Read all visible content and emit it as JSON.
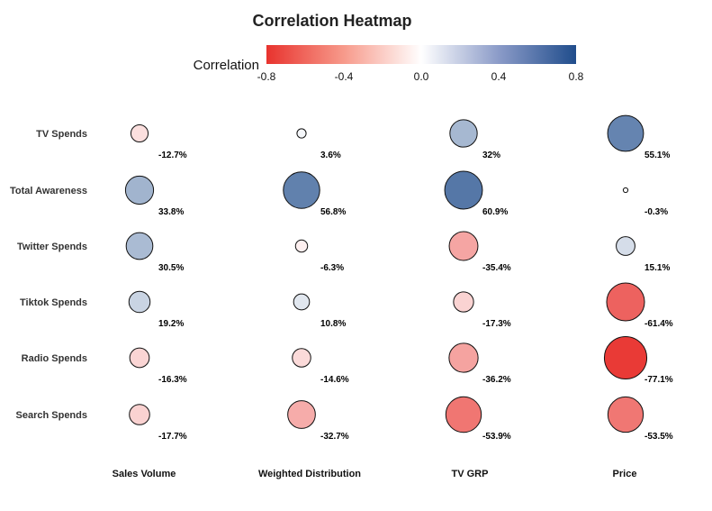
{
  "chart_data": {
    "type": "heatmap",
    "title": "Correlation Heatmap",
    "colorbar": {
      "label": "Correlation",
      "range": [
        -0.8,
        0.8
      ],
      "ticks": [
        "-0.8",
        "-0.4",
        "0.0",
        "0.4",
        "0.8"
      ],
      "colors": {
        "negative": "#e8332e",
        "neutral": "#ffffff",
        "positive": "#204d8c"
      }
    },
    "rows": [
      "TV Spends",
      "Total Awareness",
      "Twitter Spends",
      "Tiktok Spends",
      "Radio Spends",
      "Search Spends"
    ],
    "columns": [
      "Sales Volume",
      "Weighted Distribution",
      "TV GRP",
      "Price"
    ],
    "values": [
      [
        -0.127,
        0.036,
        0.32,
        0.551
      ],
      [
        0.338,
        0.568,
        0.609,
        -0.003
      ],
      [
        0.305,
        -0.063,
        -0.354,
        0.151
      ],
      [
        0.192,
        0.108,
        -0.173,
        -0.614
      ],
      [
        -0.163,
        -0.146,
        -0.362,
        -0.771
      ],
      [
        -0.177,
        -0.327,
        -0.539,
        -0.535
      ]
    ],
    "value_labels": [
      [
        "-12.7%",
        "3.6%",
        "32%",
        "55.1%"
      ],
      [
        "33.8%",
        "56.8%",
        "60.9%",
        "-0.3%"
      ],
      [
        "30.5%",
        "-6.3%",
        "-35.4%",
        "15.1%"
      ],
      [
        "19.2%",
        "10.8%",
        "-17.3%",
        "-61.4%"
      ],
      [
        "-16.3%",
        "-14.6%",
        "-36.2%",
        "-77.1%"
      ],
      [
        "-17.7%",
        "-32.7%",
        "-53.9%",
        "-53.5%"
      ]
    ],
    "marker": "bubble sized by absolute correlation, colored by correlation"
  }
}
